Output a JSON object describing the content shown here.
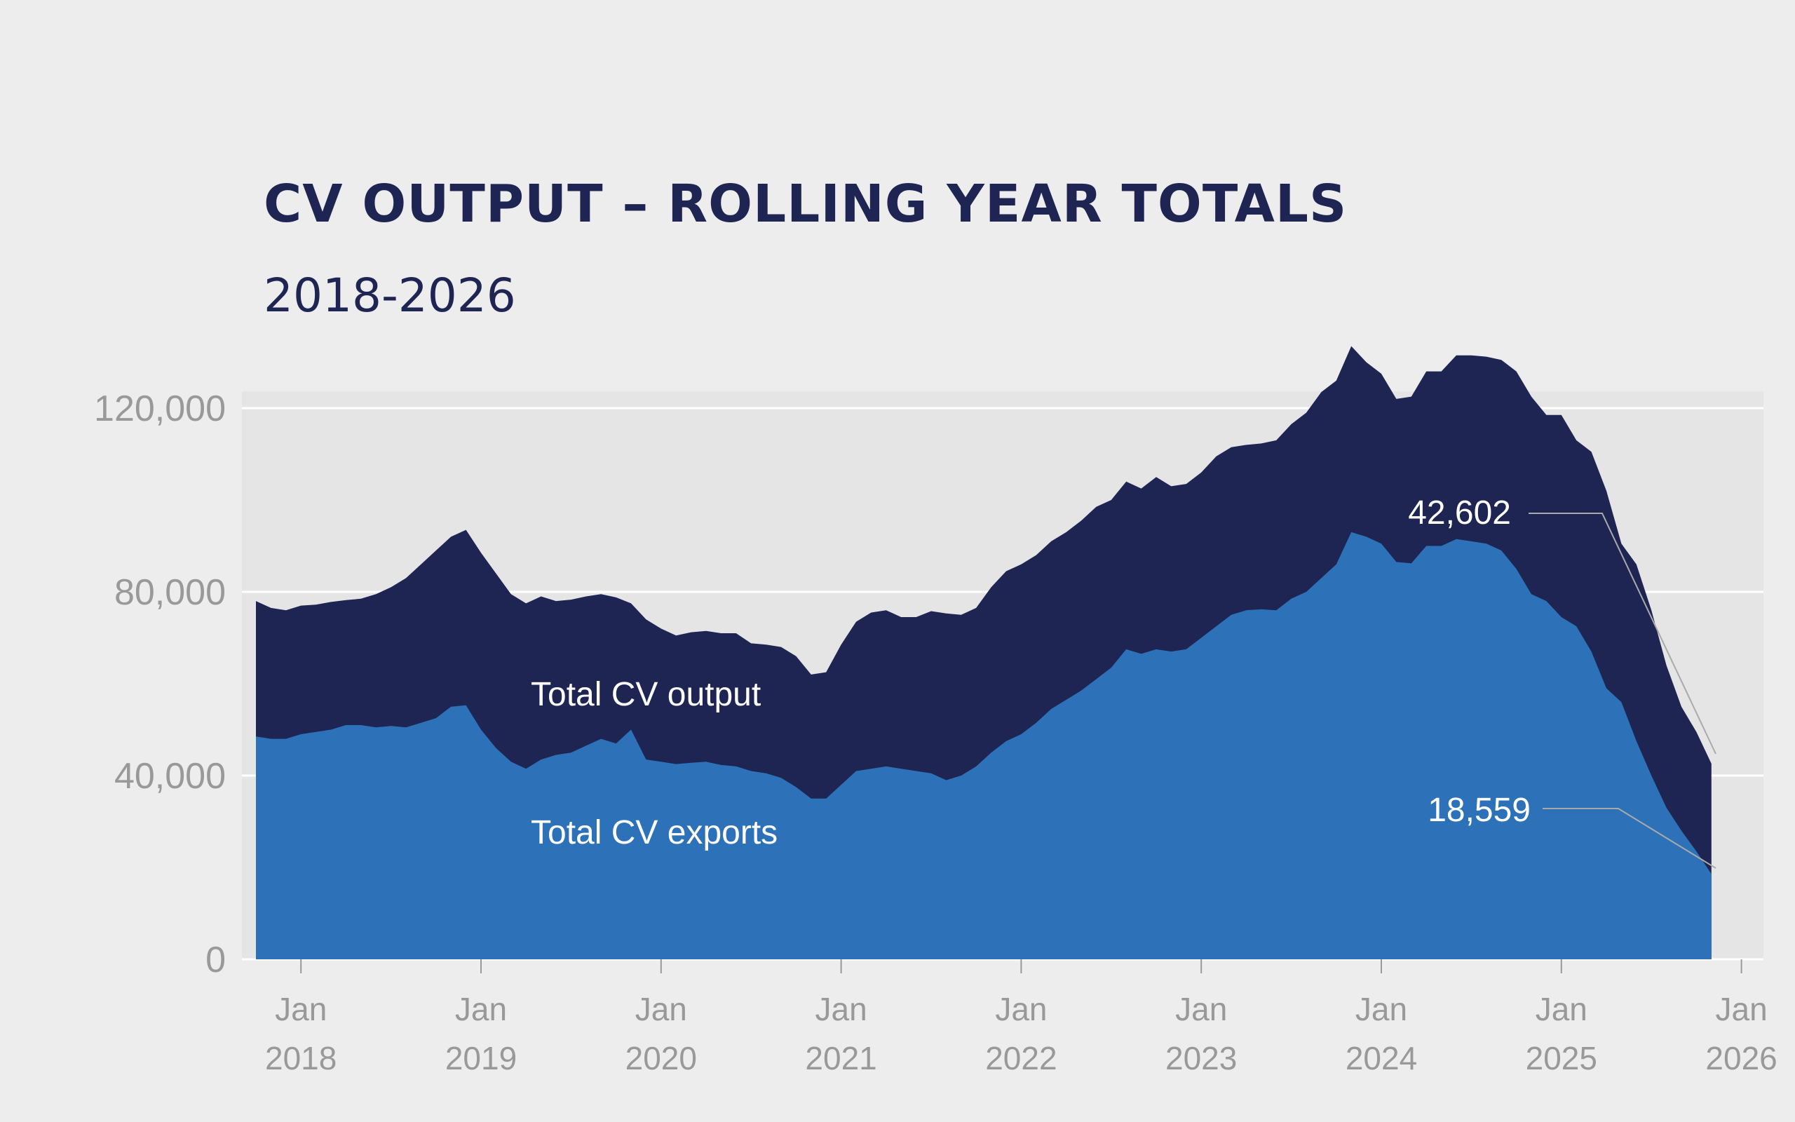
{
  "chart_data": {
    "type": "area",
    "title": "CV OUTPUT – ROLLING YEAR TOTALS",
    "subtitle": "2018-2026",
    "xlabel": "",
    "ylabel": "",
    "ylim": [
      0,
      120000
    ],
    "yticks": [
      {
        "value": 0,
        "label": "0"
      },
      {
        "value": 40000,
        "label": "40,000"
      },
      {
        "value": 80000,
        "label": "80,000"
      },
      {
        "value": 120000,
        "label": "120,000"
      }
    ],
    "xticks": [
      {
        "month": 0,
        "line1": "Jan",
        "line2": "2018"
      },
      {
        "month": 12,
        "line1": "Jan",
        "line2": "2019"
      },
      {
        "month": 24,
        "line1": "Jan",
        "line2": "2020"
      },
      {
        "month": 36,
        "line1": "Jan",
        "line2": "2021"
      },
      {
        "month": 48,
        "line1": "Jan",
        "line2": "2022"
      },
      {
        "month": 60,
        "line1": "Jan",
        "line2": "2023"
      },
      {
        "month": 72,
        "line1": "Jan",
        "line2": "2024"
      },
      {
        "month": 84,
        "line1": "Jan",
        "line2": "2025"
      },
      {
        "month": 96,
        "line1": "Jan",
        "line2": "2026"
      }
    ],
    "grid": true,
    "x_start": "Oct 2017",
    "x_end": "Jan 2026",
    "series": [
      {
        "name": "Total CV output",
        "color": "#1e2553",
        "values": [
          78000,
          76500,
          76000,
          77000,
          77200,
          77800,
          78200,
          78500,
          79500,
          81000,
          83000,
          86000,
          89000,
          92000,
          93500,
          88500,
          84000,
          79500,
          77500,
          79000,
          78000,
          78300,
          79000,
          79500,
          78800,
          77500,
          74000,
          72000,
          70500,
          71200,
          71500,
          71000,
          71000,
          68800,
          68500,
          68000,
          66000,
          62000,
          62500,
          68500,
          73500,
          75500,
          76000,
          74500,
          74500,
          75800,
          75300,
          75000,
          76500,
          81000,
          84500,
          86000,
          88000,
          91000,
          93000,
          95500,
          98500,
          100000,
          104000,
          102500,
          105000,
          103000,
          103500,
          106000,
          109500,
          111500,
          112000,
          112300,
          113000,
          116500,
          119000,
          123500,
          126000,
          133500,
          130000,
          127500,
          122000,
          122500,
          128000,
          128000,
          131500,
          131500,
          131200,
          130500,
          128000,
          122500,
          118500,
          118500,
          113000,
          110500,
          102000,
          90500,
          86000,
          76000,
          64000,
          55000,
          49500,
          42602
        ]
      },
      {
        "name": "Total CV exports",
        "color": "#2d72b8",
        "values": [
          48500,
          48000,
          48000,
          49000,
          49500,
          50000,
          51000,
          51000,
          50500,
          50800,
          50500,
          51500,
          52500,
          55000,
          55300,
          50000,
          46000,
          43000,
          41500,
          43500,
          44500,
          45000,
          46500,
          48000,
          47000,
          50000,
          43500,
          43000,
          42500,
          42800,
          43000,
          42300,
          42000,
          41000,
          40500,
          39500,
          37500,
          35000,
          35000,
          38000,
          41000,
          41500,
          42000,
          41500,
          41000,
          40500,
          39000,
          40000,
          42000,
          45000,
          47500,
          49000,
          51500,
          54500,
          56500,
          58500,
          61000,
          63500,
          67500,
          66500,
          67500,
          67000,
          67500,
          70000,
          72500,
          75000,
          76000,
          76200,
          76000,
          78500,
          80000,
          83000,
          86000,
          93000,
          92000,
          90500,
          86500,
          86200,
          90000,
          90000,
          91500,
          91000,
          90500,
          89000,
          85000,
          79500,
          78000,
          74500,
          72500,
          67000,
          59000,
          56000,
          47500,
          40000,
          33000,
          28000,
          23500,
          18559
        ]
      }
    ],
    "annotations": [
      {
        "text": "Total CV output"
      },
      {
        "text": "Total CV exports"
      },
      {
        "text": "42,602"
      },
      {
        "text": "18,559"
      }
    ]
  }
}
